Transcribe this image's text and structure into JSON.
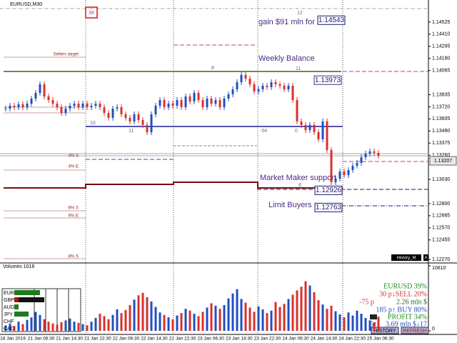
{
  "chart_data": {
    "type": "candlestick",
    "title": "EURUSD,M30",
    "closes": [
      1.13703,
      1.1373,
      1.13716,
      1.13744,
      1.13716,
      1.1375,
      1.13798,
      1.13852,
      1.13934,
      1.13818,
      1.13784,
      1.1375,
      1.13716,
      1.13662,
      1.13703,
      1.1373,
      1.1375,
      1.13716,
      1.1375,
      1.13716,
      1.1373,
      1.1375,
      1.13716,
      1.13662,
      1.13615,
      1.13703,
      1.13716,
      1.13649,
      1.13615,
      1.13581,
      1.13649,
      1.13594,
      1.13547,
      1.13479,
      1.13649,
      1.1373,
      1.13784,
      1.13716,
      1.1375,
      1.1373,
      1.13784,
      1.13716,
      1.13818,
      1.13771,
      1.13852,
      1.13784,
      1.13716,
      1.13798,
      1.1375,
      1.13784,
      1.13716,
      1.13798,
      1.13839,
      1.13886,
      1.13954,
      1.14022,
      1.13988,
      1.13934,
      1.13866,
      1.13886,
      1.1392,
      1.13907,
      1.13954,
      1.13934,
      1.1392,
      1.13886,
      1.1392,
      1.13784,
      1.13581,
      1.13547,
      1.13499,
      1.13547,
      1.13479,
      1.13411,
      1.13581,
      1.13309,
      1.13004,
      1.13037,
      1.13105,
      1.13071,
      1.13119,
      1.1316,
      1.13187,
      1.13241,
      1.13275,
      1.13296,
      1.13282,
      1.13255
    ],
    "up_color": "#1f4fbf",
    "down_color": "#d9302c",
    "ylim": [
      1.12236,
      1.14735
    ],
    "yticks": [
      1.14525,
      {
        "value": 1.1441,
        "label": "1.14410"
      },
      1.14295,
      {
        "value": 1.1418,
        "label": "1.14180"
      },
      1.14065,
      1.13835,
      {
        "value": 1.1372,
        "label": "1.13720"
      },
      1.13605,
      {
        "value": 1.1349,
        "label": "1.13490"
      },
      1.13375,
      {
        "value": 1.1326,
        "label": "1.13260"
      },
      {
        "value": 1.1303,
        "label": "1.13030"
      },
      {
        "value": 1.128,
        "label": "1.12800"
      },
      1.12685,
      {
        "value": 1.1257,
        "label": "1.12570"
      },
      1.12455,
      {
        "value": 1.1227,
        "label": "1.12270"
      }
    ],
    "price_boxes": [
      1.14543,
      1.13973,
      1.13207,
      1.12926,
      1.12763
    ],
    "time_labels": [
      "18 Jan 2019",
      "21 Jan 06:30",
      "21 Jan 14:30",
      "21 Jan 22:30",
      "22 Jan 06:30",
      "22 Jan 14:30",
      "22 Jan 22:30",
      "23 Jan 06:30",
      "23 Jan 14:30",
      "23 Jan 22:30",
      "24 Jan 06:30",
      "24 Jan 14:30",
      "24 Jan 22:30",
      "25 Jan 06:30"
    ],
    "annotations": {
      "gain": "gain $91 mln for sale",
      "weekly": "Weekly Balance",
      "mm": "Market Maker support",
      "limit": "Limit Buyers",
      "sellers": "Sellers target",
      "s4": "4% S",
      "e4": "4% E",
      "s6": "6% S",
      "e6": "6% E",
      "s8": "8% S",
      "n38": "38",
      "n12": "12",
      "n8a": "8",
      "n11a": "11",
      "n11b": "11",
      "n10": "10",
      "n54": "-54",
      "n0": "0",
      "n8b": "8"
    },
    "history_label": "History_M",
    "history_a": "A",
    "volume": {
      "title": "Volumes 1016",
      "values": [
        900,
        1200,
        800,
        1500,
        1100,
        1800,
        2200,
        3100,
        2600,
        1900,
        1500,
        1200,
        1000,
        1400,
        1700,
        2000,
        1500,
        1300,
        1100,
        900,
        1500,
        2100,
        2800,
        2400,
        1900,
        2600,
        3500,
        2900,
        3400,
        4200,
        5100,
        5800,
        6200,
        5500,
        4800,
        3900,
        3000,
        2600,
        2200,
        1900,
        2500,
        2900,
        3600,
        3300,
        2800,
        2400,
        3100,
        3800,
        4500,
        4100,
        3600,
        4200,
        5300,
        6100,
        6800,
        5200,
        4600,
        3800,
        3100,
        4000,
        3500,
        2900,
        3300,
        4700,
        3900,
        4400,
        5200,
        5900,
        6600,
        7200,
        8100,
        7400,
        6300,
        5000,
        4300,
        3600,
        4100,
        3200,
        2700,
        2200,
        3000,
        2500,
        3300,
        2800,
        2100,
        1700,
        1400,
        2300
      ],
      "ylim": [
        0,
        10610
      ],
      "yticks": [
        0,
        10610
      ]
    },
    "currencies": [
      "EUR",
      "GBP",
      "AUD",
      "JPY",
      "CHF",
      "CAD"
    ],
    "panel": {
      "pair": "EURUSD 39%",
      "sell": "30 p↓SELL 20%",
      "loss": "-75 p",
      "mln1": "2.26 mln $",
      "buy": "185 p↑ BUY 80%",
      "profit": "PROFIT 34%",
      "five": "5↑",
      "mln2": "3.69 mln $↓17",
      "history": "HISTORY",
      "refresh": "REFRESH"
    }
  }
}
